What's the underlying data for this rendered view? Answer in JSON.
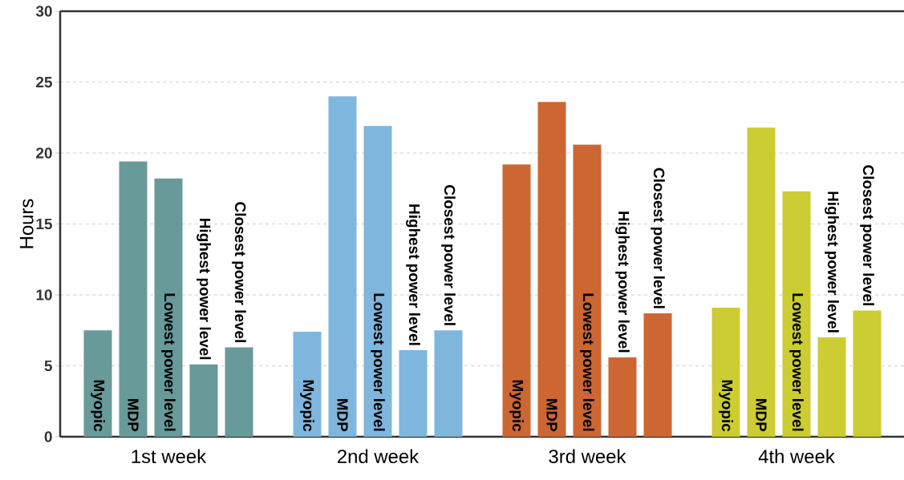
{
  "chart_data": {
    "type": "bar",
    "ylabel": "Hours",
    "categories": [
      "1st week",
      "2nd week",
      "3rd week",
      "4th week"
    ],
    "series": [
      {
        "name": "Myopic",
        "colors": [
          "#689a99",
          "#7fb6dd",
          "#cc6633",
          "#cccc33"
        ],
        "values": [
          7.5,
          7.4,
          19.2,
          9.1
        ]
      },
      {
        "name": "MDP",
        "colors": [
          "#689a99",
          "#7fb6dd",
          "#cc6633",
          "#cccc33"
        ],
        "values": [
          19.4,
          24.0,
          23.6,
          21.8
        ]
      },
      {
        "name": "Lowest power level",
        "colors": [
          "#689a99",
          "#7fb6dd",
          "#cc6633",
          "#cccc33"
        ],
        "values": [
          18.2,
          21.9,
          20.6,
          17.3
        ]
      },
      {
        "name": "Highest power level",
        "colors": [
          "#689a99",
          "#7fb6dd",
          "#cc6633",
          "#cccc33"
        ],
        "values": [
          5.1,
          6.1,
          5.6,
          7.0
        ]
      },
      {
        "name": "Closest power level",
        "colors": [
          "#689a99",
          "#7fb6dd",
          "#cc6633",
          "#cccc33"
        ],
        "values": [
          6.3,
          7.5,
          8.7,
          8.9
        ]
      }
    ],
    "ylim": [
      0,
      30
    ],
    "yticks": [
      0,
      5,
      10,
      15,
      20,
      25,
      30
    ],
    "grid": "y"
  }
}
